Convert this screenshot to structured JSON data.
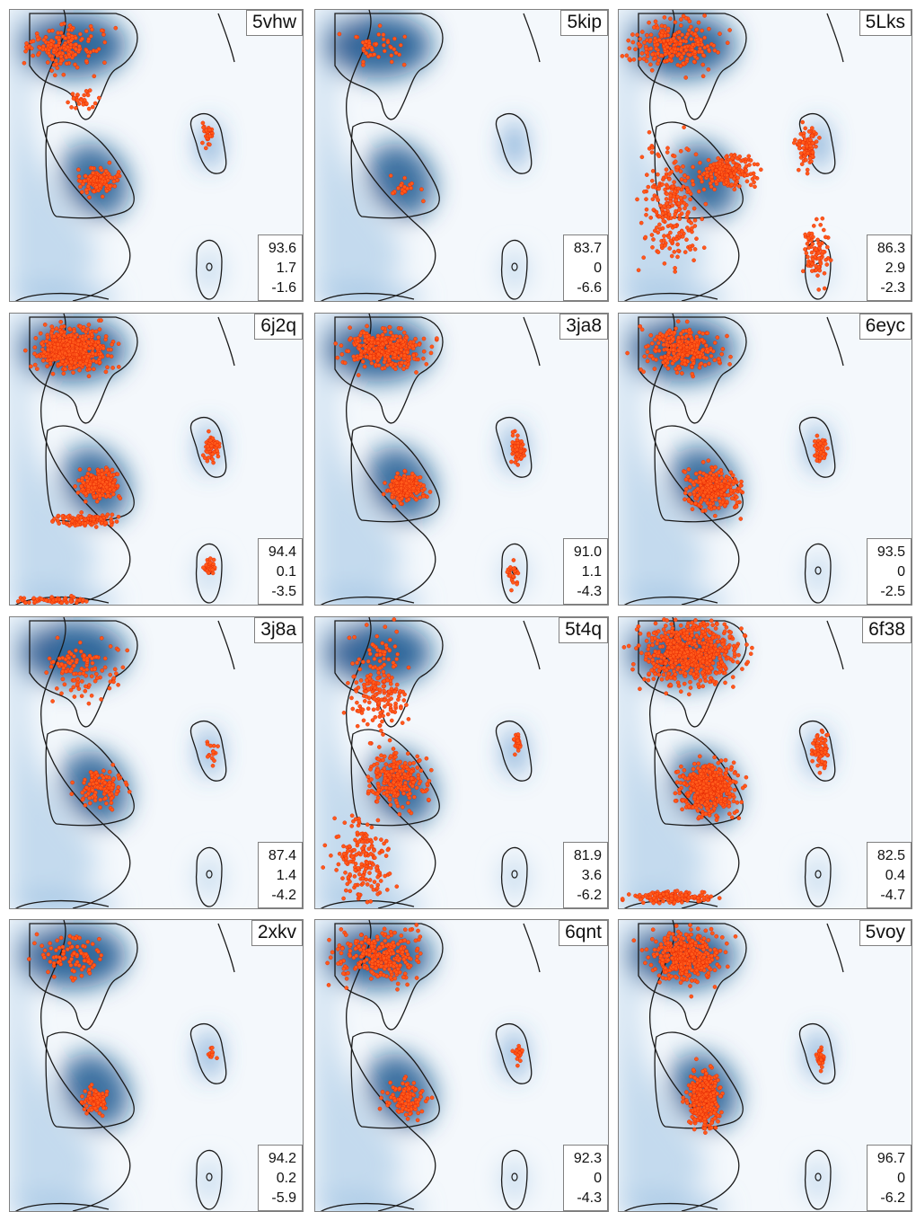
{
  "chart_data": {
    "type": "scatter",
    "layout": "4x3 grid of Ramachandran density panels with scatter overlay",
    "colors": {
      "point": "#ff5a1a",
      "point_edge": "#e02000",
      "density_dark": "#0d4f8b",
      "density_light": "#f4f8fc",
      "contour": "#1a1a1a"
    },
    "panels": [
      {
        "id": "5vhw",
        "stats": [
          "93.6",
          "1.7",
          "-1.6"
        ]
      },
      {
        "id": "5kip",
        "stats": [
          "83.7",
          "0",
          "-6.6"
        ]
      },
      {
        "id": "5Lks",
        "stats": [
          "86.3",
          "2.9",
          "-2.3"
        ]
      },
      {
        "id": "6j2q",
        "stats": [
          "94.4",
          "0.1",
          "-3.5"
        ]
      },
      {
        "id": "3ja8",
        "stats": [
          "91.0",
          "1.1",
          "-4.3"
        ]
      },
      {
        "id": "6eyc",
        "stats": [
          "93.5",
          "0",
          "-2.5"
        ]
      },
      {
        "id": "3j8a",
        "stats": [
          "87.4",
          "1.4",
          "-4.2"
        ]
      },
      {
        "id": "5t4q",
        "stats": [
          "81.9",
          "3.6",
          "-6.2"
        ]
      },
      {
        "id": "6f38",
        "stats": [
          "82.5",
          "0.4",
          "-4.7"
        ]
      },
      {
        "id": "2xkv",
        "stats": [
          "94.2",
          "0.2",
          "-5.9"
        ]
      },
      {
        "id": "6qnt",
        "stats": [
          "92.3",
          "0",
          "-4.3"
        ]
      },
      {
        "id": "5voy",
        "stats": [
          "96.7",
          "0",
          "-6.2"
        ]
      }
    ]
  }
}
